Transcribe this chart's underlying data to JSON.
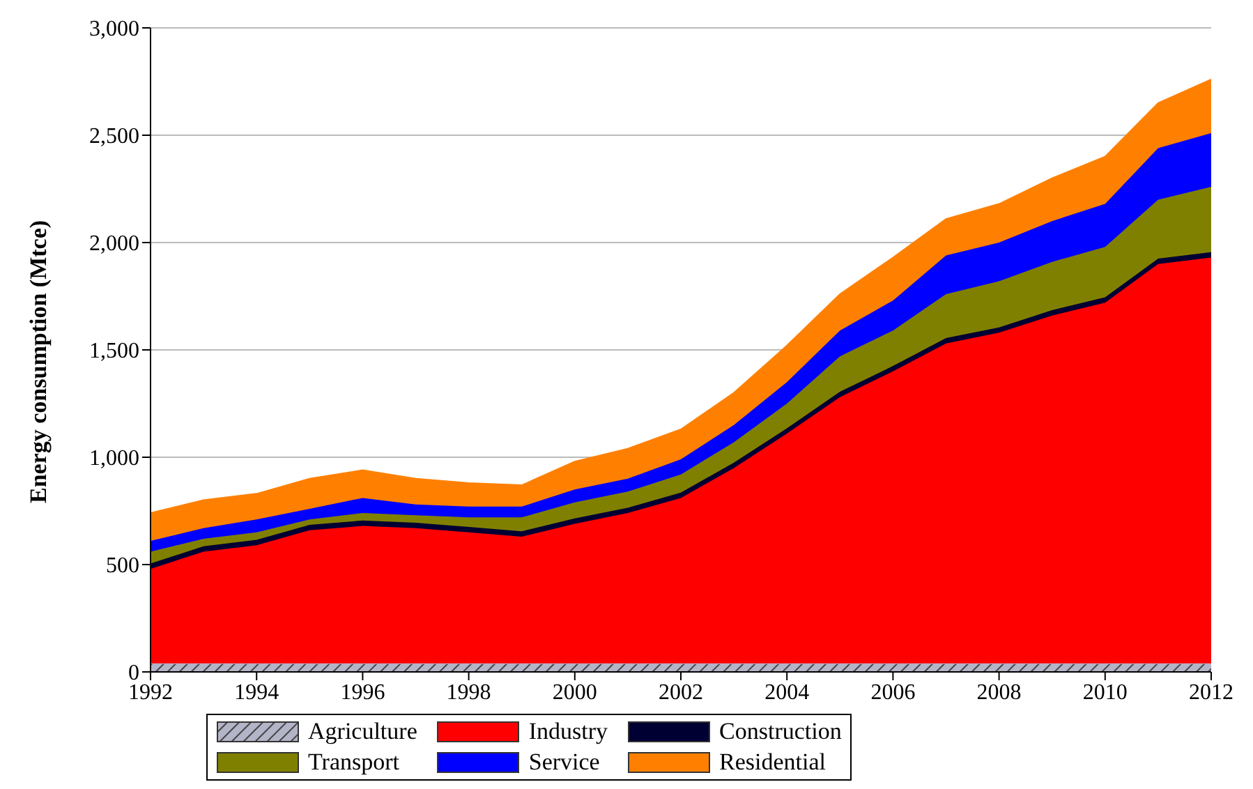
{
  "chart_data": {
    "type": "area",
    "stacked": true,
    "ylabel": "Energy consumption (Mtce)",
    "x": [
      1992,
      1993,
      1994,
      1995,
      1996,
      1997,
      1998,
      1999,
      2000,
      2001,
      2002,
      2003,
      2004,
      2005,
      2006,
      2007,
      2008,
      2009,
      2010,
      2011,
      2012
    ],
    "series": [
      {
        "name": "Agriculture",
        "color": "#b4b4c8",
        "values": [
          40,
          40,
          40,
          40,
          40,
          40,
          40,
          40,
          40,
          40,
          40,
          40,
          40,
          40,
          40,
          40,
          40,
          40,
          40,
          40,
          40
        ]
      },
      {
        "name": "Industry",
        "color": "#ff0000",
        "values": [
          440,
          520,
          550,
          620,
          640,
          630,
          610,
          590,
          650,
          700,
          770,
          910,
          1070,
          1240,
          1360,
          1490,
          1540,
          1620,
          1680,
          1860,
          1890
        ]
      },
      {
        "name": "Construction",
        "color": "#000033",
        "values": [
          25,
          25,
          25,
          25,
          25,
          25,
          25,
          25,
          25,
          25,
          25,
          25,
          25,
          25,
          25,
          25,
          25,
          25,
          25,
          25,
          25
        ]
      },
      {
        "name": "Transport",
        "color": "#808000",
        "values": [
          55,
          35,
          35,
          25,
          35,
          35,
          45,
          65,
          75,
          75,
          85,
          95,
          115,
          165,
          165,
          205,
          215,
          225,
          235,
          275,
          305
        ]
      },
      {
        "name": "Service",
        "color": "#0000ff",
        "values": [
          50,
          50,
          60,
          50,
          70,
          50,
          50,
          50,
          60,
          60,
          70,
          80,
          100,
          120,
          140,
          180,
          180,
          190,
          200,
          240,
          250
        ]
      },
      {
        "name": "Residential",
        "color": "#ff8000",
        "values": [
          130,
          130,
          120,
          140,
          130,
          120,
          110,
          100,
          130,
          140,
          140,
          150,
          170,
          170,
          200,
          170,
          180,
          200,
          220,
          210,
          250
        ]
      }
    ],
    "xlim": [
      1992,
      2012
    ],
    "xticks": [
      1992,
      1994,
      1996,
      1998,
      2000,
      2002,
      2004,
      2006,
      2008,
      2010,
      2012
    ],
    "ylim": [
      0,
      3000
    ],
    "yticks": [
      {
        "value": 0,
        "label": "0"
      },
      {
        "value": 500,
        "label": "500"
      },
      {
        "value": 1000,
        "label": "1,000"
      },
      {
        "value": 1500,
        "label": "1,500"
      },
      {
        "value": 2000,
        "label": "2,000"
      },
      {
        "value": 2500,
        "label": "2,500"
      },
      {
        "value": 3000,
        "label": "3,000"
      }
    ],
    "grid": "y",
    "legend": "bottom"
  }
}
